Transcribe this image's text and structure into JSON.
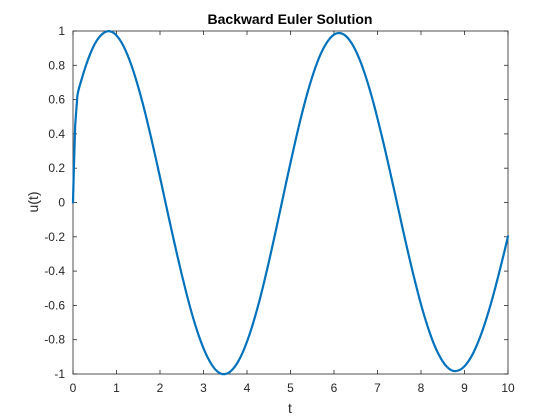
{
  "chart_data": {
    "type": "line",
    "title": "Backward Euler Solution",
    "xlabel": "t",
    "ylabel": "u(t)",
    "xlim": [
      0,
      10
    ],
    "ylim": [
      -1,
      1
    ],
    "xticks": [
      "0",
      "1",
      "2",
      "3",
      "4",
      "5",
      "6",
      "7",
      "8",
      "9",
      "10"
    ],
    "yticks": [
      "-1",
      "-0.8",
      "-0.6",
      "-0.4",
      "-0.2",
      "0",
      "0.2",
      "0.4",
      "0.6",
      "0.8",
      "1"
    ],
    "grid": false,
    "box": true,
    "line_color": "#0072BD",
    "series": [
      {
        "x": [
          0,
          0.02,
          0.05,
          0.1,
          0.2,
          0.3,
          0.4,
          0.5,
          0.6,
          0.7,
          0.8,
          0.9,
          1.0,
          1.1,
          1.2,
          1.3,
          1.4,
          1.5,
          1.6,
          1.7,
          1.8,
          1.9,
          2.0,
          2.1,
          2.2,
          2.3,
          2.4,
          2.5,
          2.6,
          2.7,
          2.8,
          2.9,
          3.0,
          3.1,
          3.2,
          3.3,
          3.4,
          3.5,
          3.6,
          3.7,
          3.8,
          3.9,
          4.0,
          4.1,
          4.2,
          4.3,
          4.4,
          4.5,
          4.6,
          4.7,
          4.8,
          4.9,
          5.0,
          5.1,
          5.2,
          5.3,
          5.4,
          5.5,
          5.6,
          5.7,
          5.8,
          5.9,
          6.0,
          6.1,
          6.2,
          6.3,
          6.4,
          6.5,
          6.6,
          6.7,
          6.8,
          6.9,
          7.0,
          7.1,
          7.2,
          7.3,
          7.4,
          7.5,
          7.6,
          7.7,
          7.8,
          7.9,
          8.0,
          8.1,
          8.2,
          8.3,
          8.4,
          8.5,
          8.6,
          8.7,
          8.8,
          8.9,
          9.0,
          9.1,
          9.2,
          9.3,
          9.4,
          9.5,
          9.6,
          9.7,
          9.8,
          9.9,
          10.0
        ],
        "y": [
          0,
          0.2,
          0.45,
          0.62,
          0.72,
          0.801,
          0.869,
          0.924,
          0.963,
          0.988,
          0.999,
          0.994,
          0.974,
          0.94,
          0.891,
          0.83,
          0.757,
          0.673,
          0.581,
          0.48,
          0.373,
          0.262,
          0.147,
          0.031,
          -0.086,
          -0.2,
          -0.312,
          -0.42,
          -0.522,
          -0.618,
          -0.705,
          -0.783,
          -0.85,
          -0.906,
          -0.95,
          -0.981,
          -0.998,
          -1.0,
          -0.989,
          -0.964,
          -0.926,
          -0.875,
          -0.811,
          -0.737,
          -0.652,
          -0.559,
          -0.457,
          -0.349,
          -0.236,
          -0.12,
          -0.002,
          0.116,
          0.232,
          0.345,
          0.454,
          0.555,
          0.649,
          0.733,
          0.807,
          0.869,
          0.918,
          0.955,
          0.979,
          0.988,
          0.983,
          0.964,
          0.931,
          0.885,
          0.827,
          0.757,
          0.677,
          0.588,
          0.49,
          0.387,
          0.279,
          0.167,
          0.053,
          -0.062,
          -0.177,
          -0.288,
          -0.396,
          -0.498,
          -0.594,
          -0.681,
          -0.759,
          -0.827,
          -0.883,
          -0.927,
          -0.959,
          -0.978,
          -0.983,
          -0.975,
          -0.955,
          -0.922,
          -0.878,
          -0.822,
          -0.756,
          -0.68,
          -0.596,
          -0.504,
          -0.406,
          -0.304,
          -0.197
        ]
      }
    ]
  }
}
